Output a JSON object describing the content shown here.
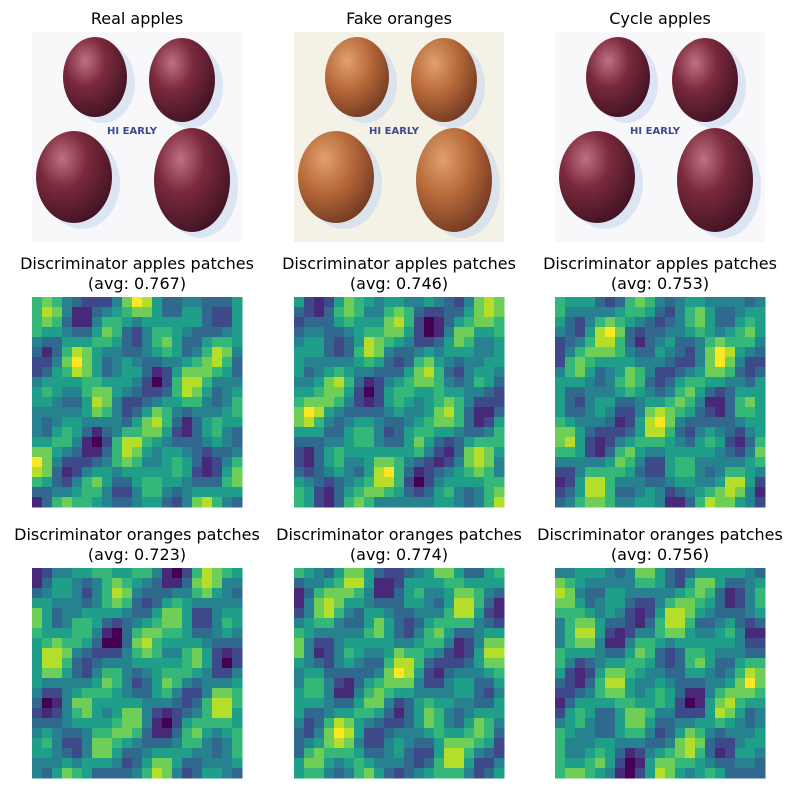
{
  "panels": [
    {
      "kind": "photo",
      "tint": "apple",
      "title": [
        "Real apples"
      ],
      "photo_text": "HI EARLY"
    },
    {
      "kind": "photo",
      "tint": "orange",
      "title": [
        "Fake oranges"
      ],
      "photo_text": "HI EARLY"
    },
    {
      "kind": "photo",
      "tint": "apple",
      "title": [
        "Cycle apples"
      ],
      "photo_text": "HI EARLY"
    },
    {
      "kind": "heatmap",
      "title": [
        "Discriminator apples patches",
        "(avg: 0.767)"
      ]
    },
    {
      "kind": "heatmap",
      "title": [
        "Discriminator apples patches",
        "(avg: 0.746)"
      ]
    },
    {
      "kind": "heatmap",
      "title": [
        "Discriminator apples patches",
        "(avg: 0.753)"
      ]
    },
    {
      "kind": "heatmap",
      "title": [
        "Discriminator oranges patches",
        "(avg: 0.723)"
      ]
    },
    {
      "kind": "heatmap",
      "title": [
        "Discriminator oranges patches",
        "(avg: 0.774)"
      ]
    },
    {
      "kind": "heatmap",
      "title": [
        "Discriminator oranges patches",
        "(avg: 0.756)"
      ]
    }
  ]
}
